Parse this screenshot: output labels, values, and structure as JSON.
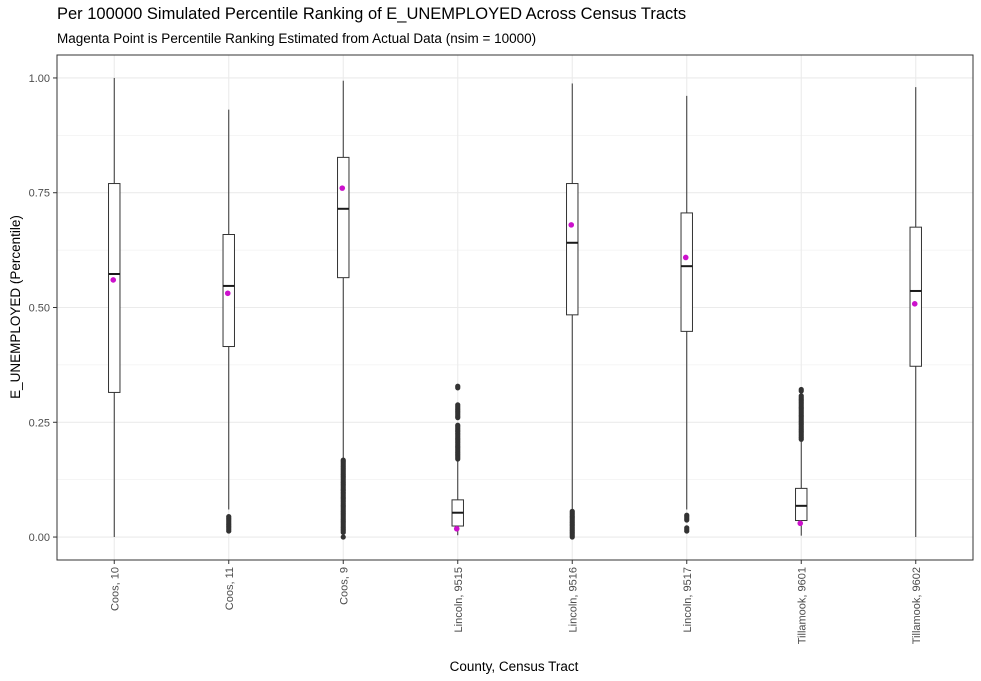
{
  "chart_data": {
    "type": "boxplot",
    "title": "Per 100000 Simulated Percentile Ranking of E_UNEMPLOYED Across Census Tracts",
    "subtitle": "Magenta Point is Percentile Ranking Estimated from Actual Data (nsim = 10000)",
    "xlabel": "County, Census Tract",
    "ylabel": "E_UNEMPLOYED (Percentile)",
    "ylim": [
      -0.05,
      1.05
    ],
    "yticks": [
      0.0,
      0.25,
      0.5,
      0.75,
      1.0
    ],
    "ytick_labels": [
      "0.00",
      "0.25",
      "0.50",
      "0.75",
      "1.00"
    ],
    "grid": true,
    "colors": {
      "box": "#333333",
      "outlier": "#333333",
      "point": "#cc11cc",
      "grid": "#ebebeb"
    },
    "categories": [
      "Coos, 10",
      "Coos, 11",
      "Coos, 9",
      "Lincoln, 9515",
      "Lincoln, 9516",
      "Lincoln, 9517",
      "Tillamook, 9601",
      "Tillamook, 9602"
    ],
    "boxes": [
      {
        "whisker_low": 0.0,
        "q1": 0.315,
        "median": 0.573,
        "q3": 0.77,
        "whisker_high": 1.0,
        "outlier_ranges": [],
        "actual": 0.56
      },
      {
        "whisker_low": 0.06,
        "q1": 0.415,
        "median": 0.547,
        "q3": 0.659,
        "whisker_high": 0.931,
        "outlier_ranges": [
          [
            0.013,
            0.045
          ]
        ],
        "actual": 0.531
      },
      {
        "whisker_low": 0.17,
        "q1": 0.565,
        "median": 0.715,
        "q3": 0.827,
        "whisker_high": 0.994,
        "outlier_ranges": [
          [
            0.0,
            0.0
          ],
          [
            0.01,
            0.168
          ]
        ],
        "actual": 0.76
      },
      {
        "whisker_low": 0.004,
        "q1": 0.024,
        "median": 0.053,
        "q3": 0.081,
        "whisker_high": 0.166,
        "outlier_ranges": [
          [
            0.17,
            0.246
          ],
          [
            0.26,
            0.29
          ],
          [
            0.325,
            0.329
          ]
        ],
        "actual": 0.018
      },
      {
        "whisker_low": 0.06,
        "q1": 0.484,
        "median": 0.641,
        "q3": 0.77,
        "whisker_high": 0.988,
        "outlier_ranges": [
          [
            0.0,
            0.058
          ]
        ],
        "actual": 0.68
      },
      {
        "whisker_low": 0.06,
        "q1": 0.448,
        "median": 0.59,
        "q3": 0.706,
        "whisker_high": 0.961,
        "outlier_ranges": [
          [
            0.013,
            0.022
          ],
          [
            0.037,
            0.048
          ]
        ],
        "actual": 0.609
      },
      {
        "whisker_low": 0.003,
        "q1": 0.036,
        "median": 0.068,
        "q3": 0.106,
        "whisker_high": 0.208,
        "outlier_ranges": [
          [
            0.213,
            0.31
          ],
          [
            0.318,
            0.322
          ]
        ],
        "actual": 0.03
      },
      {
        "whisker_low": 0.0,
        "q1": 0.372,
        "median": 0.536,
        "q3": 0.675,
        "whisker_high": 0.98,
        "outlier_ranges": [],
        "actual": 0.508
      }
    ]
  }
}
